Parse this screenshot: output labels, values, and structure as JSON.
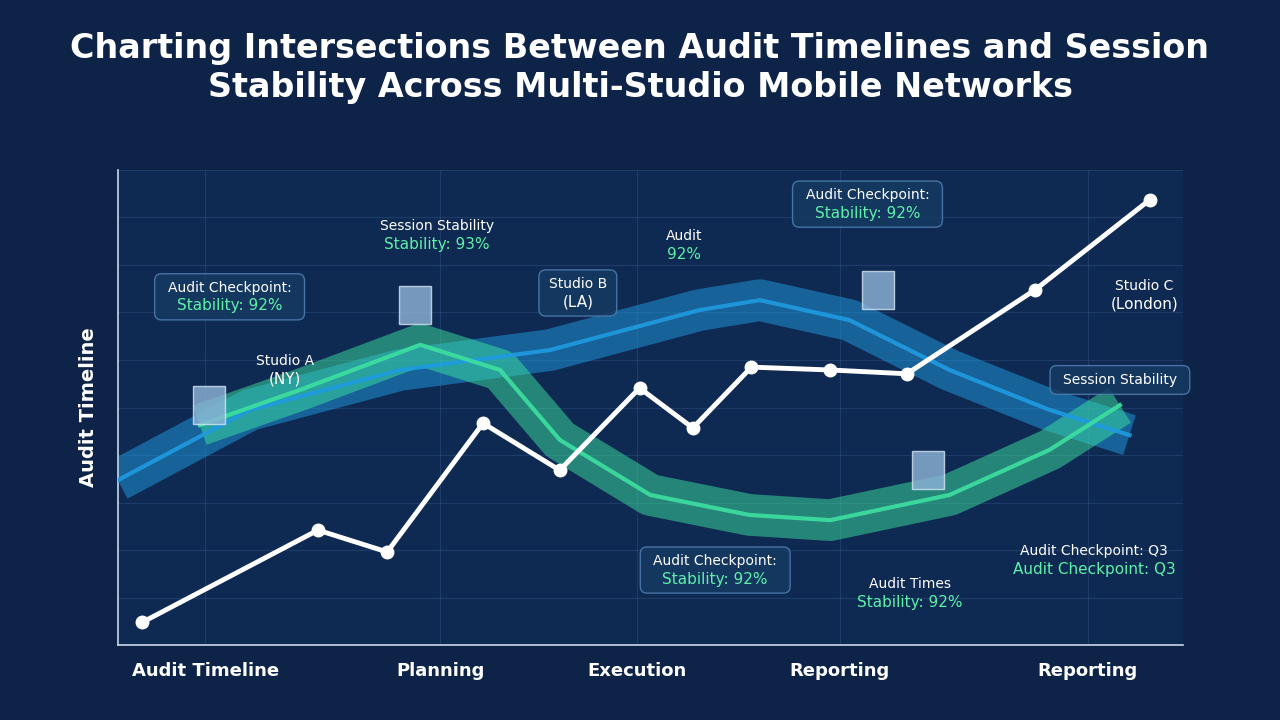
{
  "chart_data": {
    "type": "line",
    "title": "Charting Intersections Between Audit Timelines and Session Stability Across Multi-Studio Mobile Networks",
    "y_label": "Audit Timeline",
    "xlim": [
      0,
      100
    ],
    "xticks": [
      {
        "value": 8.2,
        "label": "Audit Timeline"
      },
      {
        "value": 30.3,
        "label": "Planning"
      },
      {
        "value": 48.8,
        "label": "Execution"
      },
      {
        "value": 67.8,
        "label": "Reporting"
      },
      {
        "value": 91.1,
        "label": "Reporting"
      }
    ],
    "ylim": [
      0,
      100
    ],
    "yticks": [
      0,
      10,
      20,
      30,
      40,
      50,
      60,
      70,
      80,
      90,
      100
    ],
    "grid": true,
    "tick_labels": "x",
    "series": [
      {
        "type": "band",
        "color": "#1e9be0",
        "marker": "none",
        "line_style": "solid",
        "x": [
          0,
          12.4,
          26.5,
          40.6,
          54.6,
          60.3,
          68.7,
          78.1,
          87.5,
          95.0
        ],
        "values": [
          34.7,
          49.5,
          57.9,
          62.1,
          70.5,
          72.6,
          68.4,
          57.9,
          49.5,
          44.2
        ]
      },
      {
        "type": "band",
        "color": "#3de0a0",
        "marker": "none",
        "line_style": "solid",
        "x": [
          7.7,
          17.1,
          28.4,
          35.9,
          41.5,
          50.0,
          59.3,
          66.9,
          78.1,
          87.5,
          94.1
        ],
        "values": [
          46.3,
          53.7,
          63.2,
          57.9,
          43.2,
          31.6,
          27.4,
          26.3,
          31.6,
          41.1,
          50.5
        ]
      },
      {
        "type": "line",
        "color": "#ffffff",
        "marker": "o",
        "line_style": "solid",
        "x": [
          2.3,
          18.8,
          25.3,
          34.3,
          41.5,
          49.0,
          54.0,
          59.5,
          66.9,
          74.1,
          86.1,
          96.9
        ],
        "values": [
          4.8,
          24.2,
          19.6,
          46.7,
          36.8,
          54.1,
          45.7,
          58.5,
          57.9,
          57.1,
          74.7,
          93.7
        ]
      }
    ],
    "annotations": [
      "Audit Checkpoint:\nStability: 92%",
      "Session Stability\nStability: 93%",
      "Studio A\n(NY)",
      "Studio B\n(LA)",
      "Audit\n92%",
      "Audit Checkpoint:\nStability: 92%",
      "Studio C\n(London)",
      "Session Stability",
      "Audit Checkpoint:\nStability: 92%",
      "Audit Times\nStability: 92%",
      "Audit Checkpoint: Q3\nAudit Checkpoint: Q3"
    ]
  }
}
